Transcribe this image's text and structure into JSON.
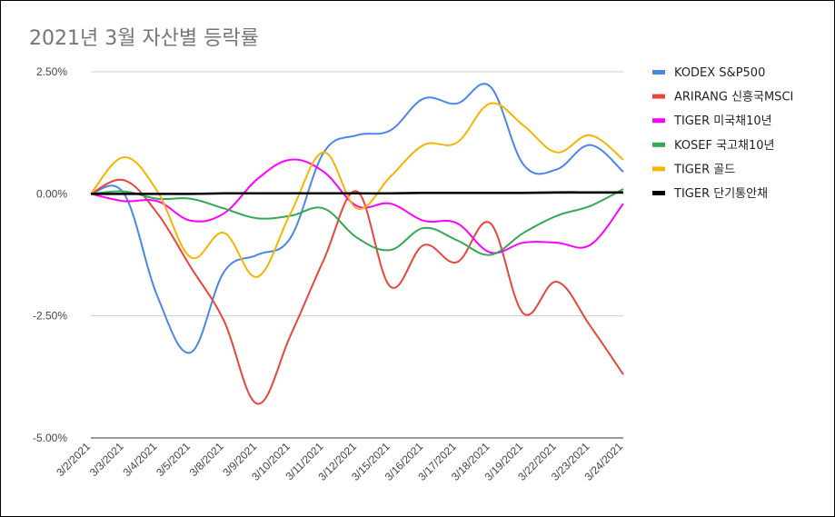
{
  "chart_data": {
    "type": "line",
    "title": "2021년 3월 자산별 등락률",
    "xlabel": "",
    "ylabel": "",
    "x": [
      "3/2/2021",
      "3/3/2021",
      "3/4/2021",
      "3/5/2021",
      "3/8/2021",
      "3/9/2021",
      "3/10/2021",
      "3/11/2021",
      "3/12/2021",
      "3/15/2021",
      "3/16/2021",
      "3/17/2021",
      "3/18/2021",
      "3/19/2021",
      "3/22/2021",
      "3/23/2021",
      "3/24/2021"
    ],
    "ylim": [
      -5.0,
      2.5
    ],
    "yticks": [
      2.5,
      0.0,
      -2.5,
      -5.0
    ],
    "ytick_labels": [
      "2.50%",
      "0.00%",
      "-2.50%",
      "-5.00%"
    ],
    "grid": true,
    "legend_position": "right",
    "series": [
      {
        "name": "KODEX S&P500",
        "color": "#4a86e8",
        "values": [
          0.0,
          0.0,
          -2.1,
          -3.25,
          -1.6,
          -1.25,
          -0.9,
          0.85,
          1.2,
          1.3,
          1.95,
          1.85,
          2.2,
          0.6,
          0.5,
          1.0,
          0.45
        ]
      },
      {
        "name": "ARIRANG 신흥국MSCI",
        "color": "#e8453c",
        "values": [
          0.0,
          0.28,
          -0.4,
          -1.5,
          -2.6,
          -4.3,
          -2.9,
          -1.35,
          0.05,
          -1.9,
          -1.05,
          -1.4,
          -0.6,
          -2.45,
          -1.8,
          -2.7,
          -3.7
        ]
      },
      {
        "name": "TIGER 미국채10년",
        "color": "#ff00ff",
        "values": [
          0.0,
          -0.15,
          -0.15,
          -0.55,
          -0.4,
          0.3,
          0.7,
          0.45,
          -0.25,
          -0.2,
          -0.55,
          -0.6,
          -1.2,
          -1.0,
          -1.0,
          -1.05,
          -0.2
        ]
      },
      {
        "name": "KOSEF 국고채10년",
        "color": "#34a853",
        "values": [
          0.0,
          0.05,
          -0.1,
          -0.1,
          -0.3,
          -0.5,
          -0.45,
          -0.3,
          -0.9,
          -1.15,
          -0.7,
          -0.95,
          -1.25,
          -0.8,
          -0.45,
          -0.25,
          0.1
        ]
      },
      {
        "name": "TIGER 골드",
        "color": "#f4b400",
        "values": [
          0.0,
          0.75,
          0.05,
          -1.3,
          -0.8,
          -1.7,
          -0.4,
          0.85,
          -0.3,
          0.35,
          1.0,
          1.05,
          1.85,
          1.4,
          0.85,
          1.2,
          0.7
        ]
      },
      {
        "name": "TIGER 단기통안채",
        "color": "#000000",
        "values": [
          0.0,
          0.0,
          0.0,
          0.0,
          0.01,
          0.01,
          0.01,
          0.01,
          0.01,
          0.01,
          0.02,
          0.02,
          0.02,
          0.02,
          0.03,
          0.03,
          0.03
        ]
      }
    ]
  }
}
